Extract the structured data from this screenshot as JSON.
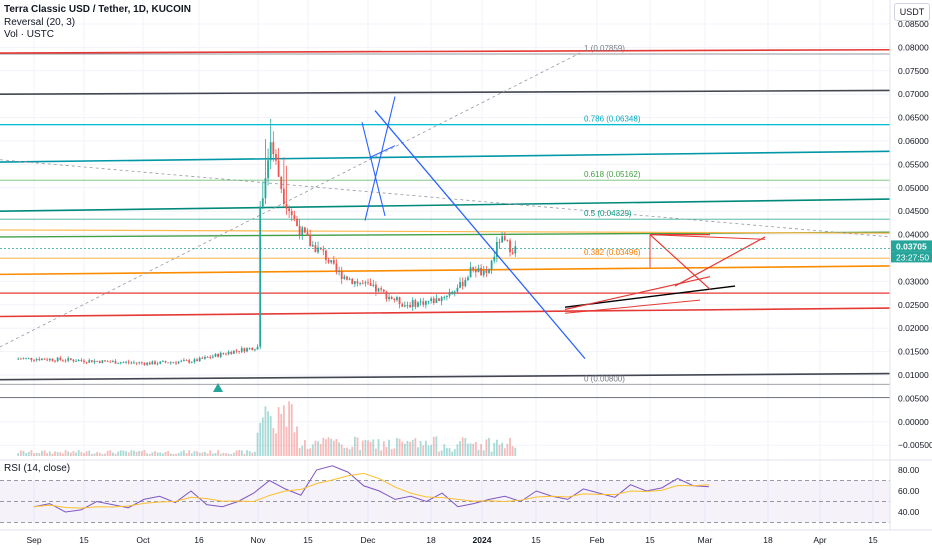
{
  "header": {
    "symbol_title": "Terra Classic USD / Tether, 1D, KUCOIN",
    "indicator_reversal": "Reversal (20, 3)",
    "indicator_volume": "Vol · USTC",
    "currency": "USDT"
  },
  "colors": {
    "up": "#26a69a",
    "down": "#ef5350",
    "blue_line": "#2962ff",
    "red_line": "#e53935",
    "dark_line": "#434651",
    "teal_line": "#00bcd4",
    "green_line": "#089981",
    "orange_line": "#ff9800",
    "rsi_line": "#7e57c2",
    "rsi_ma": "#fbc02d",
    "price_tag": "#26a69a",
    "countdown_tag": "#26a69a"
  },
  "price_axis": {
    "ticks": [
      "0.08500",
      "0.08000",
      "0.07500",
      "0.07000",
      "0.06500",
      "0.06000",
      "0.05500",
      "0.05000",
      "0.04500",
      "0.04000",
      "0.03500",
      "0.03000",
      "0.02500",
      "0.02000",
      "0.01500",
      "0.01000",
      "0.00500",
      "0.00000",
      "−0.00500"
    ],
    "current_price": "0.03705",
    "countdown": "23:27:50"
  },
  "rsi_panel": {
    "label": "RSI (14, close)",
    "ticks": [
      "80.00",
      "60.00",
      "40.00"
    ]
  },
  "time_axis": {
    "ticks": [
      "Sep",
      "15",
      "Oct",
      "16",
      "Nov",
      "15",
      "Dec",
      "18",
      "2024",
      "15",
      "Feb",
      "15",
      "Mar",
      "18",
      "Apr",
      "15"
    ]
  },
  "fib_levels": [
    {
      "ratio": "1",
      "value": 0.07859,
      "label": "1 (0.07859)"
    },
    {
      "ratio": "0.786",
      "value": 0.06348,
      "label": "0.786 (0.06348)"
    },
    {
      "ratio": "0.618",
      "value": 0.05162,
      "label": "0.618 (0.05162)"
    },
    {
      "ratio": "0.5",
      "value": 0.04329,
      "label": "0.5 (0.04329)"
    },
    {
      "ratio": "0.382",
      "value": 0.03496,
      "label": "0.382 (0.03496)"
    },
    {
      "ratio": "0",
      "value": 0.008,
      "label": "0 (0.00800)"
    }
  ],
  "chart_data": {
    "type": "candlestick",
    "title": "Terra Classic USD / Tether, 1D, KUCOIN",
    "x_range": [
      "2023-08-26",
      "2024-04-22"
    ],
    "ylim": [
      -0.0065,
      0.0865
    ],
    "y_axis_side": "right",
    "series": [
      {
        "name": "USTC",
        "x": [
          "2023-09-01",
          "2023-09-15",
          "2023-10-01",
          "2023-10-15",
          "2023-11-01",
          "2023-11-15",
          "2023-11-25",
          "2023-11-26",
          "2023-11-28",
          "2023-11-30",
          "2023-12-02",
          "2023-12-05",
          "2023-12-10",
          "2023-12-15",
          "2023-12-20",
          "2023-12-25",
          "2024-01-01",
          "2024-01-10",
          "2024-01-20",
          "2024-02-01",
          "2024-02-10",
          "2024-02-15",
          "2024-02-20",
          "2024-02-25",
          "2024-03-01"
        ],
        "close": [
          0.0135,
          0.0132,
          0.0128,
          0.0125,
          0.013,
          0.015,
          0.016,
          0.046,
          0.052,
          0.06,
          0.055,
          0.048,
          0.042,
          0.038,
          0.036,
          0.032,
          0.03,
          0.028,
          0.025,
          0.026,
          0.029,
          0.033,
          0.031,
          0.039,
          0.037
        ]
      }
    ],
    "rsi": {
      "name": "RSI (14, close)",
      "ylim": [
        30,
        90
      ],
      "bands": [
        70,
        50,
        30
      ],
      "values": [
        45,
        48,
        40,
        42,
        50,
        47,
        44,
        52,
        55,
        49,
        60,
        47,
        45,
        50,
        58,
        70,
        62,
        56,
        80,
        84,
        78,
        65,
        60,
        52,
        55,
        50,
        58,
        45,
        48,
        52,
        55,
        50,
        60,
        55,
        52,
        62,
        58,
        54,
        66,
        60,
        63,
        72,
        65,
        64
      ]
    },
    "volume_shown": true
  }
}
